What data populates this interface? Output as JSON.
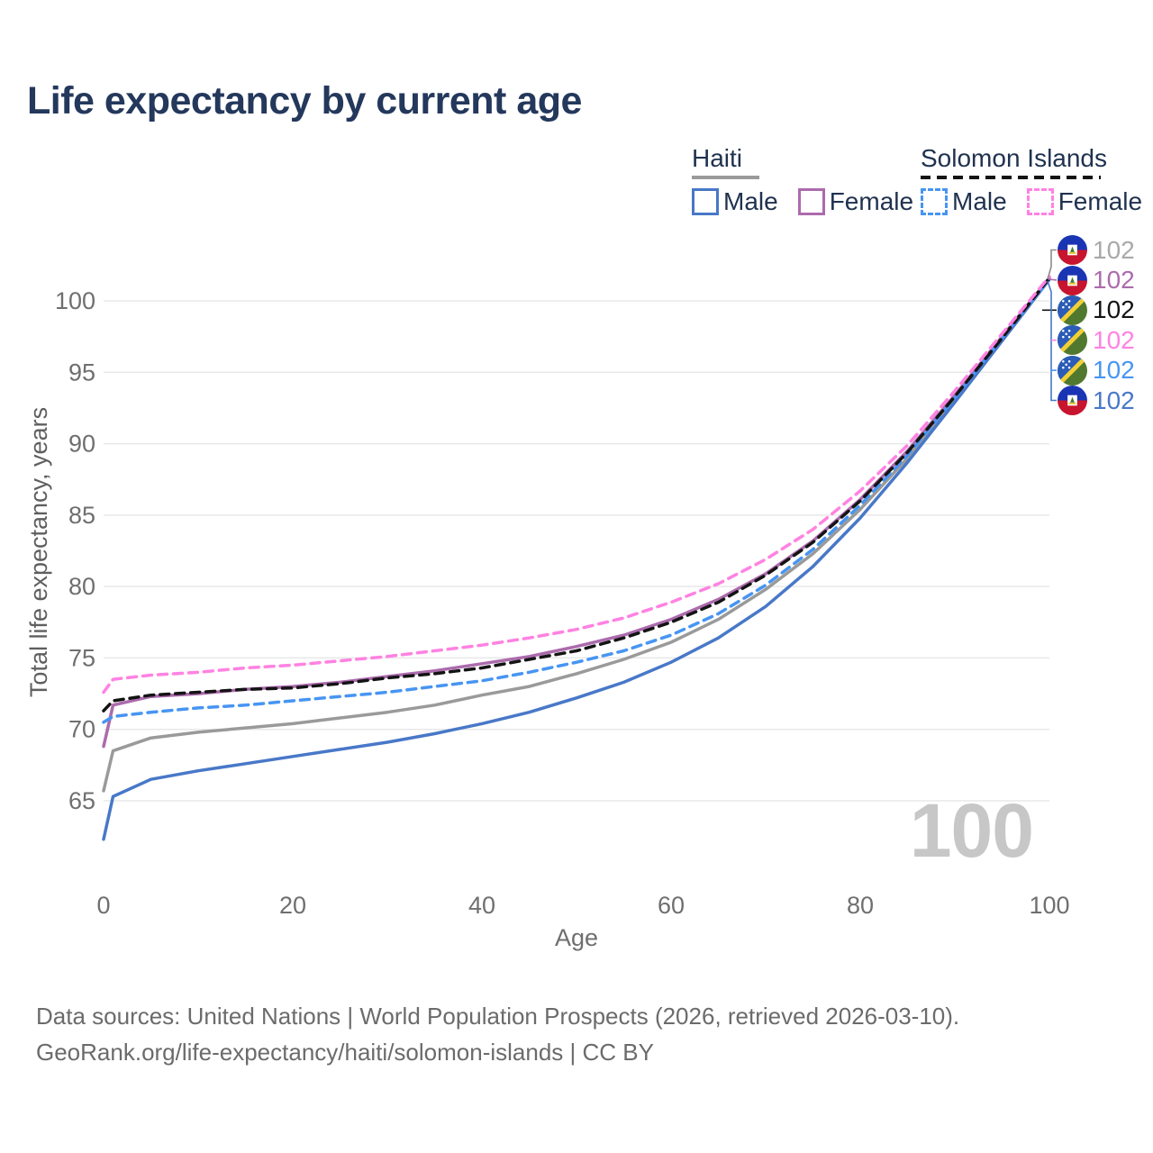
{
  "page": {
    "title": "Life expectancy by current age"
  },
  "legend": {
    "groups": [
      {
        "id": "haiti",
        "label": "Haiti",
        "line_style": "solid",
        "underline_color": "#9A9A9A",
        "items": [
          {
            "label": "Male",
            "color": "#4878C8"
          },
          {
            "label": "Female",
            "color": "#AC6BAD"
          }
        ]
      },
      {
        "id": "solomon-islands",
        "label": "Solomon Islands",
        "line_style": "dashed",
        "underline_color": "#141414",
        "items": [
          {
            "label": "Male",
            "color": "#4795F2"
          },
          {
            "label": "Female",
            "color": "#FF82E2"
          }
        ]
      }
    ]
  },
  "chart_data": {
    "type": "line",
    "title": "Life expectancy by current age",
    "xlabel": "Age",
    "ylabel": "Total life expectancy, years",
    "xlim": [
      0,
      100
    ],
    "ylim": [
      62,
      102
    ],
    "xticks": [
      0,
      20,
      40,
      60,
      80,
      100
    ],
    "yticks": [
      65,
      70,
      75,
      80,
      85,
      90,
      95,
      100
    ],
    "grid": "horizontal-only",
    "legend_position": "top-right",
    "x": [
      0,
      1,
      5,
      10,
      15,
      20,
      25,
      30,
      35,
      40,
      45,
      50,
      55,
      60,
      65,
      70,
      75,
      80,
      85,
      90,
      95,
      100
    ],
    "series": [
      {
        "name": "Haiti — Both sexes",
        "country": "Haiti",
        "flag": "haiti",
        "color": "#9A9A9A",
        "dash": "solid",
        "values": [
          65.7,
          68.5,
          69.4,
          69.8,
          70.1,
          70.4,
          70.8,
          71.2,
          71.7,
          72.4,
          73.0,
          73.9,
          74.9,
          76.1,
          77.7,
          79.8,
          82.3,
          85.4,
          89.0,
          93.1,
          97.3,
          101.5
        ]
      },
      {
        "name": "Haiti — Male",
        "country": "Haiti",
        "flag": "haiti",
        "color": "#4878C8",
        "dash": "solid",
        "values": [
          62.3,
          65.3,
          66.5,
          67.1,
          67.6,
          68.1,
          68.6,
          69.1,
          69.7,
          70.4,
          71.2,
          72.2,
          73.3,
          74.7,
          76.4,
          78.6,
          81.4,
          84.8,
          88.7,
          92.9,
          97.2,
          101.5
        ]
      },
      {
        "name": "Haiti — Female",
        "country": "Haiti",
        "flag": "haiti",
        "color": "#AC6BAD",
        "dash": "solid",
        "values": [
          68.8,
          71.7,
          72.3,
          72.5,
          72.8,
          73.0,
          73.3,
          73.7,
          74.1,
          74.6,
          75.1,
          75.8,
          76.6,
          77.7,
          79.1,
          80.9,
          83.2,
          86.1,
          89.5,
          93.4,
          97.5,
          101.6
        ]
      },
      {
        "name": "Solomon Islands — Male",
        "country": "Solomon Islands",
        "flag": "solomon-islands",
        "color": "#4795F2",
        "dash": "dashed",
        "values": [
          70.5,
          70.9,
          71.2,
          71.5,
          71.7,
          72.0,
          72.3,
          72.6,
          73.0,
          73.4,
          74.0,
          74.7,
          75.5,
          76.6,
          78.1,
          80.1,
          82.6,
          85.7,
          89.2,
          93.2,
          97.4,
          101.5
        ]
      },
      {
        "name": "Solomon Islands — Both sexes",
        "country": "Solomon Islands",
        "flag": "solomon-islands",
        "color": "#141414",
        "dash": "dashed",
        "values": [
          71.3,
          72.0,
          72.4,
          72.6,
          72.8,
          72.9,
          73.2,
          73.6,
          73.9,
          74.3,
          74.9,
          75.5,
          76.4,
          77.5,
          78.9,
          80.8,
          83.1,
          86.0,
          89.4,
          93.3,
          97.4,
          101.6
        ]
      },
      {
        "name": "Solomon Islands — Female",
        "country": "Solomon Islands",
        "flag": "solomon-islands",
        "color": "#FF82E2",
        "dash": "dashed",
        "values": [
          72.6,
          73.5,
          73.8,
          74.0,
          74.3,
          74.5,
          74.8,
          75.1,
          75.5,
          75.9,
          76.4,
          77.0,
          77.8,
          78.9,
          80.2,
          81.9,
          84.0,
          86.7,
          89.9,
          93.7,
          97.7,
          101.7
        ]
      }
    ],
    "end_labels": [
      {
        "flag": "haiti",
        "text": "102",
        "color": "#A9A9A9",
        "series": "Haiti — Both sexes"
      },
      {
        "flag": "haiti",
        "text": "102",
        "color": "#AC6BAD",
        "series": "Haiti — Female"
      },
      {
        "flag": "solomon-islands",
        "text": "102",
        "color": "#141414",
        "series": "Solomon Islands — Both sexes"
      },
      {
        "flag": "solomon-islands",
        "text": "102",
        "color": "#FF82E2",
        "series": "Solomon Islands — Female"
      },
      {
        "flag": "solomon-islands",
        "text": "102",
        "color": "#4795F2",
        "series": "Solomon Islands — Male"
      },
      {
        "flag": "haiti",
        "text": "102",
        "color": "#4878C8",
        "series": "Haiti — Male"
      }
    ]
  },
  "watermark": "100",
  "footer": {
    "line1": "Data sources: United Nations | World Population Prospects (2026, retrieved 2026-03-10).",
    "line2": "GeoRank.org/life-expectancy/haiti/solomon-islands | CC BY"
  }
}
